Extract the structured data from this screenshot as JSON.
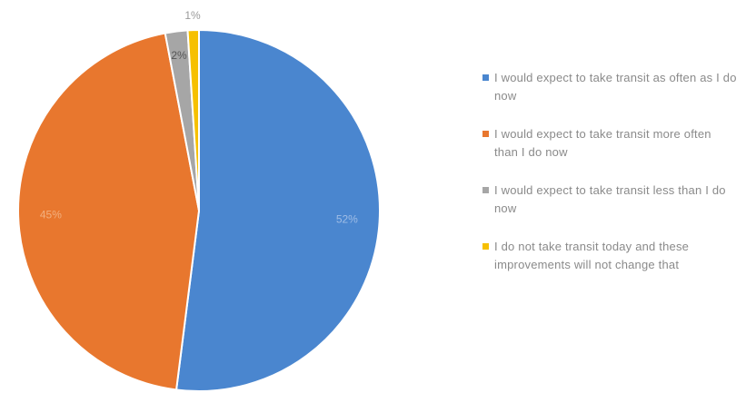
{
  "chart_data": {
    "type": "pie",
    "title": "",
    "slices": [
      {
        "label": "I would expect to take transit as often as I do now",
        "value": 52,
        "display": "52%",
        "color": "#4a86cf"
      },
      {
        "label": "I would expect to take transit more often than I do now",
        "value": 45,
        "display": "45%",
        "color": "#e8772e"
      },
      {
        "label": "I would expect to take transit less than I do now",
        "value": 2,
        "display": "2%",
        "color": "#a6a6a6"
      },
      {
        "label": "I do not take transit today and these improvements will not change that",
        "value": 1,
        "display": "1%",
        "color": "#f6c000"
      }
    ],
    "start_angle_deg": 0,
    "direction": "clockwise",
    "legend_position": "right"
  }
}
